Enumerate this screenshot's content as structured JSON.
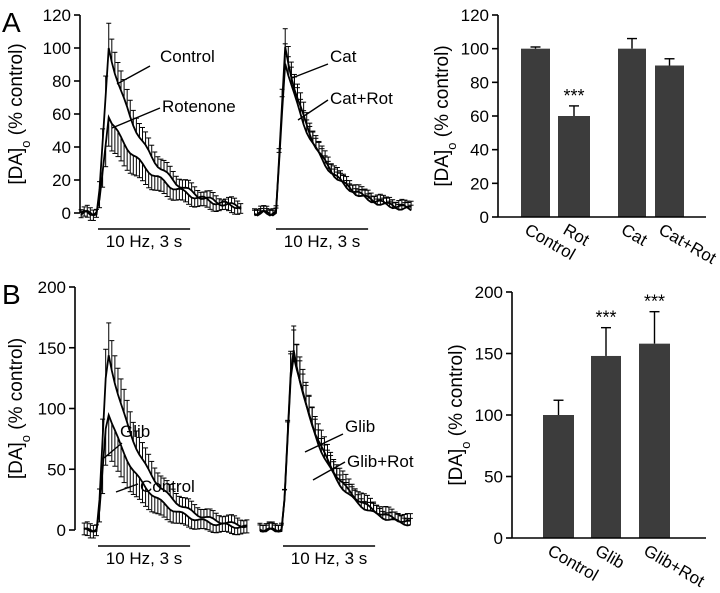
{
  "panels": {
    "a": "A",
    "b": "B"
  },
  "ylabel": {
    "main": "[DA]",
    "sub": "o",
    "rest": " (% control)"
  },
  "stim_label": "10 Hz, 3 s",
  "colors": {
    "bar": "#3c3c3c",
    "axis": "#000000"
  },
  "chart_data": [
    {
      "id": "A-trace-1",
      "type": "line",
      "title": "",
      "xlabel": "",
      "ylabel": "[DA]o (% control)",
      "ylim": [
        0,
        120
      ],
      "yticks": [
        "0",
        "20",
        "40",
        "60",
        "80",
        "100",
        "120"
      ],
      "stimulus": "10 Hz, 3 s",
      "series": [
        {
          "name": "Control",
          "peak": 100,
          "rise_s": 0.35,
          "tau_s": 1.3,
          "err_frac": 0.12,
          "err_dir": 1
        },
        {
          "name": "Rotenone",
          "peak": 58,
          "rise_s": 0.35,
          "tau_s": 1.6,
          "err_frac": 0.25,
          "err_dir": -1
        }
      ]
    },
    {
      "id": "A-trace-2",
      "type": "line",
      "ylim": [
        0,
        120
      ],
      "stimulus": "10 Hz, 3 s",
      "series": [
        {
          "name": "Cat",
          "peak": 100,
          "rise_s": 0.3,
          "tau_s": 1.1,
          "err_frac": 0.08,
          "err_dir": 1
        },
        {
          "name": "Cat+Rot",
          "peak": 92,
          "rise_s": 0.3,
          "tau_s": 1.15,
          "err_frac": 0.1,
          "err_dir": 1
        }
      ]
    },
    {
      "id": "A-bar",
      "type": "bar",
      "ylabel": "[DA]o (% control)",
      "ylim": [
        0,
        120
      ],
      "yticks": [
        "0",
        "20",
        "40",
        "60",
        "80",
        "100",
        "120"
      ],
      "categories": [
        "Control",
        "Rot",
        "Cat",
        "Cat+Rot"
      ],
      "values": [
        100,
        60,
        100,
        90
      ],
      "errors": [
        1,
        6,
        6,
        4
      ],
      "annotations": [
        "",
        "***",
        "",
        ""
      ]
    },
    {
      "id": "B-trace-1",
      "type": "line",
      "ylim": [
        0,
        200
      ],
      "yticks": [
        "0",
        "50",
        "100",
        "150",
        "200"
      ],
      "stimulus": "10 Hz, 3 s",
      "series": [
        {
          "name": "Glib",
          "peak": 150,
          "rise_s": 0.3,
          "tau_s": 1.2,
          "err_frac": 0.15,
          "err_dir": 1
        },
        {
          "name": "Control",
          "peak": 100,
          "rise_s": 0.3,
          "tau_s": 1.2,
          "err_frac": 0.3,
          "err_dir": -1
        }
      ]
    },
    {
      "id": "B-trace-2",
      "type": "line",
      "ylim": [
        0,
        200
      ],
      "stimulus": "10 Hz, 3 s",
      "series": [
        {
          "name": "Glib",
          "peak": 155,
          "rise_s": 0.3,
          "tau_s": 1.1,
          "err_frac": 0.1,
          "err_dir": 1
        },
        {
          "name": "Glib+Rot",
          "peak": 150,
          "rise_s": 0.3,
          "tau_s": 1.2,
          "err_frac": 0.12,
          "err_dir": 1
        }
      ]
    },
    {
      "id": "B-bar",
      "type": "bar",
      "ylabel": "[DA]o (% control)",
      "ylim": [
        0,
        200
      ],
      "yticks": [
        "0",
        "50",
        "100",
        "150",
        "200"
      ],
      "categories": [
        "Control",
        "Glib",
        "Glib+Rot"
      ],
      "values": [
        100,
        148,
        158
      ],
      "errors": [
        12,
        23,
        26
      ],
      "annotations": [
        "",
        "***",
        "***"
      ]
    }
  ]
}
